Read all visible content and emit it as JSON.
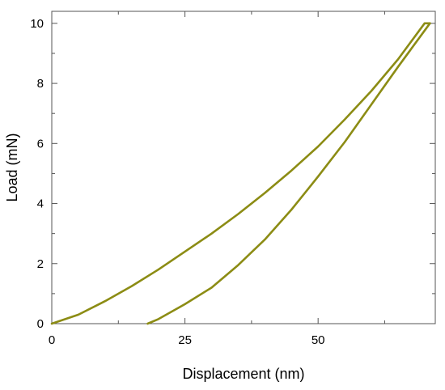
{
  "chart_data": {
    "type": "line",
    "xlabel": "Displacement (nm)",
    "ylabel": "Load (mN)",
    "xlim": [
      0,
      72
    ],
    "ylim": [
      0,
      10.4
    ],
    "x_ticks": [
      0,
      25,
      50
    ],
    "y_ticks": [
      0,
      2,
      4,
      6,
      8,
      10
    ],
    "grid": false,
    "series": [
      {
        "segment": "loading",
        "color": "#8c8c14",
        "points": [
          [
            0,
            0
          ],
          [
            5,
            0.3
          ],
          [
            10,
            0.75
          ],
          [
            15,
            1.25
          ],
          [
            20,
            1.8
          ],
          [
            25,
            2.4
          ],
          [
            30,
            3.0
          ],
          [
            35,
            3.65
          ],
          [
            40,
            4.35
          ],
          [
            45,
            5.1
          ],
          [
            50,
            5.9
          ],
          [
            55,
            6.8
          ],
          [
            60,
            7.75
          ],
          [
            65,
            8.8
          ],
          [
            70,
            10.0
          ],
          [
            71,
            10.0
          ]
        ]
      },
      {
        "segment": "unloading",
        "color": "#8c8c14",
        "points": [
          [
            71,
            10.0
          ],
          [
            65,
            8.55
          ],
          [
            60,
            7.3
          ],
          [
            55,
            6.05
          ],
          [
            50,
            4.9
          ],
          [
            45,
            3.8
          ],
          [
            40,
            2.8
          ],
          [
            35,
            1.95
          ],
          [
            30,
            1.2
          ],
          [
            25,
            0.65
          ],
          [
            20,
            0.15
          ],
          [
            18,
            0.0
          ]
        ]
      }
    ]
  }
}
